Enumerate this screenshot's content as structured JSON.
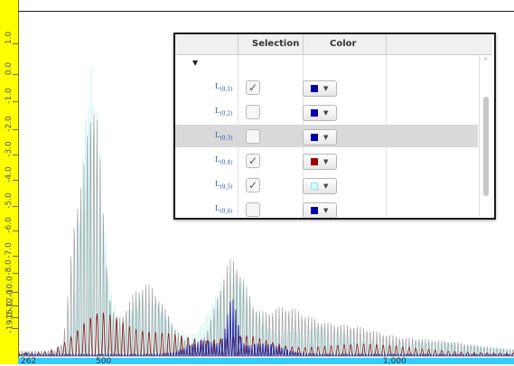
{
  "y_axis": {
    "labels": [
      "1.0",
      "0.0",
      "-1.0",
      "-2.0",
      "-3.0",
      "-4.0",
      "-5.0",
      "-6.0",
      "-7.0",
      "-8.0",
      "-10.0",
      "-12.0",
      "-15.0",
      "-19.0"
    ]
  },
  "x_axis": {
    "labels": [
      "262",
      "500",
      "1,000"
    ],
    "neg_inf": "-∞"
  },
  "legend": {
    "headers": {
      "selection": "Selection",
      "color": "Color"
    },
    "expand_icon": "triangle-down",
    "rows": [
      {
        "name": "L",
        "sub": "(0,1)",
        "checked": true,
        "color": "#0000aa",
        "selected": false
      },
      {
        "name": "L",
        "sub": "(0,2)",
        "checked": false,
        "color": "#0000aa",
        "selected": false
      },
      {
        "name": "L",
        "sub": "(0,3)",
        "checked": false,
        "color": "#0000aa",
        "selected": true
      },
      {
        "name": "L",
        "sub": "(0,4)",
        "checked": true,
        "color": "#990000",
        "selected": false
      },
      {
        "name": "L",
        "sub": "(0,5)",
        "checked": true,
        "color": "#ccffff",
        "selected": false
      },
      {
        "name": "L",
        "sub": "(0,6)",
        "checked": false,
        "color": "#0000aa",
        "selected": false
      }
    ]
  },
  "colors": {
    "ruler_y": "#ffff00",
    "ruler_x": "#33ccff",
    "series_gray": "#a0a0a0",
    "series_cyan": "#c8f4f4",
    "series_red": "#8b1a1a",
    "series_blue": "#1a1aa0"
  }
}
